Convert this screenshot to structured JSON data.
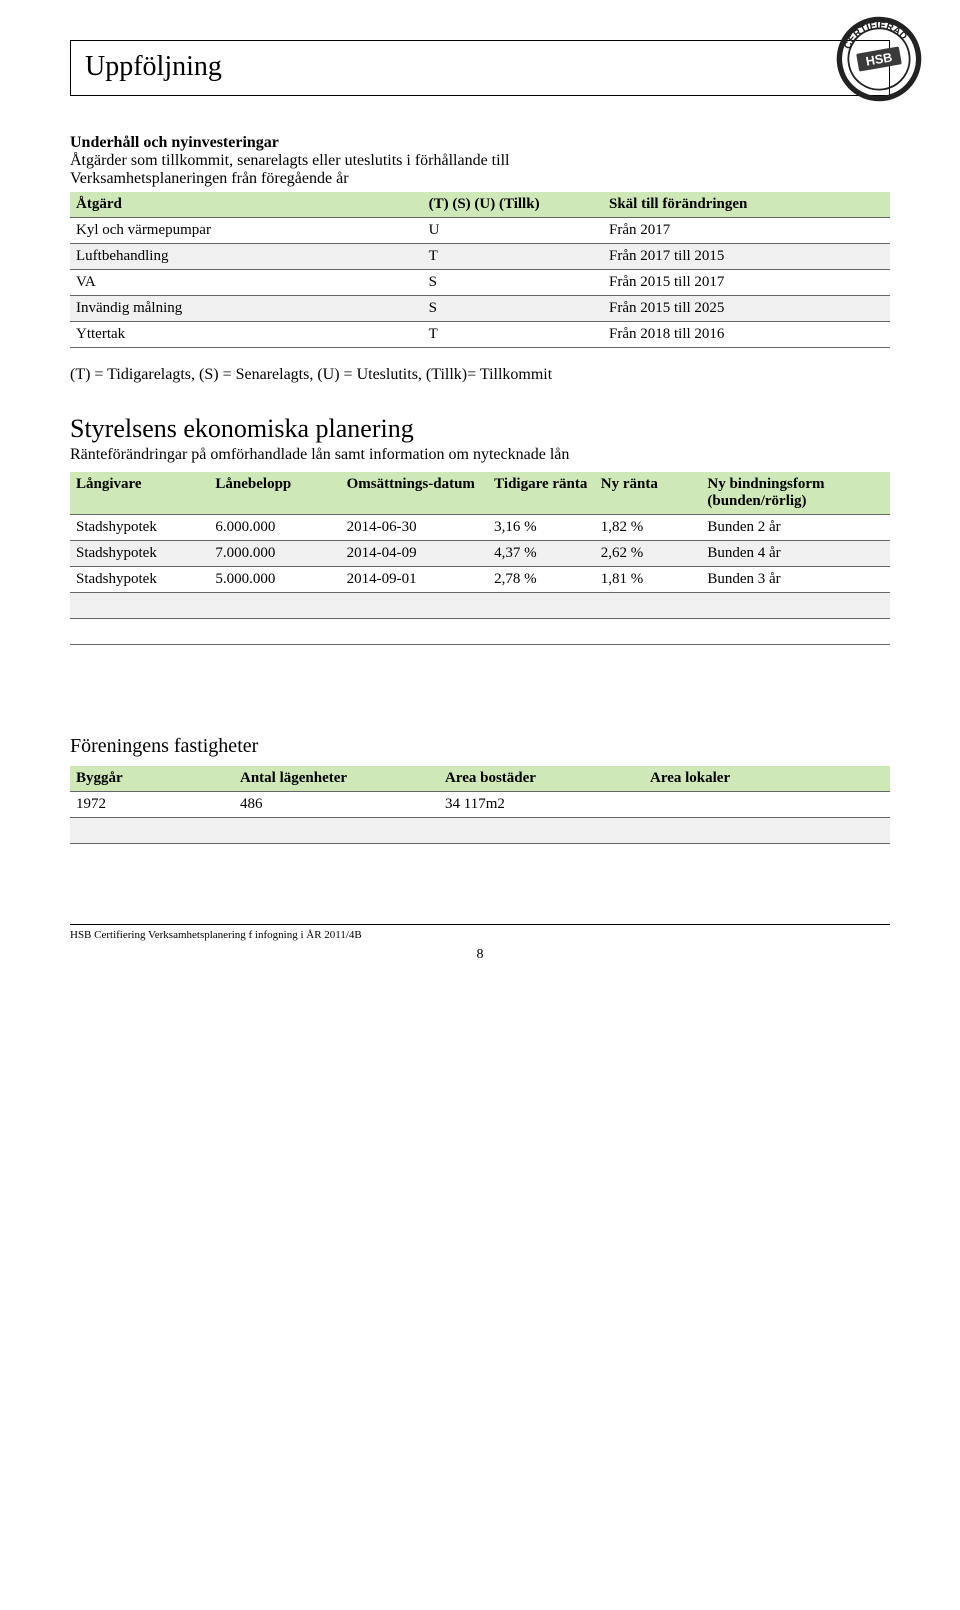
{
  "colors": {
    "table_header_bg": "#cfe8b7",
    "row_alt_bg": "#f0f0f0",
    "border": "#666666",
    "text": "#000000",
    "page_bg": "#ffffff"
  },
  "page_title": "Uppföljning",
  "stamp": {
    "top_word": "CERTIFIERAD",
    "bottom_word": "HSB"
  },
  "section1": {
    "heading": "Underhåll och nyinvesteringar",
    "sub1": "Åtgärder som tillkommit, senarelagts eller uteslutits i förhållande till",
    "sub2": "Verksamhetsplaneringen från föregående år",
    "table": {
      "headers": [
        "Åtgärd",
        "(T) (S) (U) (Tillk)",
        "Skäl till förändringen"
      ],
      "col_widths_pct": [
        43,
        22,
        35
      ],
      "rows": [
        {
          "cells": [
            "Kyl och värmepumpar",
            "U",
            "Från 2017"
          ],
          "alt": false
        },
        {
          "cells": [
            "Luftbehandling",
            "T",
            "Från 2017 till 2015"
          ],
          "alt": true
        },
        {
          "cells": [
            "VA",
            "S",
            "Från 2015 till 2017"
          ],
          "alt": false
        },
        {
          "cells": [
            "Invändig målning",
            "S",
            "Från 2015 till 2025"
          ],
          "alt": true
        },
        {
          "cells": [
            "Yttertak",
            "T",
            "Från 2018 till 2016"
          ],
          "alt": false
        }
      ]
    },
    "legend": "(T) = Tidigarelagts, (S) = Senarelagts, (U) = Uteslutits, (Tillk)= Tillkommit"
  },
  "section2": {
    "heading": "Styrelsens ekonomiska planering",
    "sub": "Ränteförändringar på omförhandlade lån samt information om nytecknade lån",
    "table": {
      "headers": [
        "Långivare",
        "Lånebelopp",
        "Omsättnings-datum",
        "Tidigare ränta",
        "Ny ränta",
        "Ny bindningsform (bunden/rörlig)"
      ],
      "col_widths_pct": [
        17,
        16,
        18,
        13,
        13,
        23
      ],
      "rows": [
        {
          "cells": [
            "Stadshypotek",
            "6.000.000",
            "2014-06-30",
            "3,16 %",
            "1,82 %",
            "Bunden 2 år"
          ],
          "alt": false
        },
        {
          "cells": [
            "Stadshypotek",
            "7.000.000",
            "2014-04-09",
            "4,37 %",
            "2,62 %",
            "Bunden 4 år"
          ],
          "alt": true
        },
        {
          "cells": [
            "Stadshypotek",
            "5.000.000",
            "2014-09-01",
            "2,78 %",
            "1,81 %",
            "Bunden 3 år"
          ],
          "alt": false
        },
        {
          "cells": [
            "",
            "",
            "",
            "",
            "",
            ""
          ],
          "alt": true
        },
        {
          "cells": [
            "",
            "",
            "",
            "",
            "",
            ""
          ],
          "alt": false
        }
      ]
    }
  },
  "section3": {
    "heading": "Föreningens fastigheter",
    "table": {
      "headers": [
        "Byggår",
        "Antal lägenheter",
        "Area bostäder",
        "Area lokaler"
      ],
      "col_widths_pct": [
        20,
        25,
        25,
        30
      ],
      "rows": [
        {
          "cells": [
            "1972",
            "486",
            "34 117m2",
            ""
          ],
          "alt": false
        },
        {
          "cells": [
            "",
            "",
            "",
            ""
          ],
          "alt": true
        }
      ]
    }
  },
  "footer": "HSB Certifiering Verksamhetsplanering f infogning i ÅR 2011/4B",
  "page_number": "8"
}
